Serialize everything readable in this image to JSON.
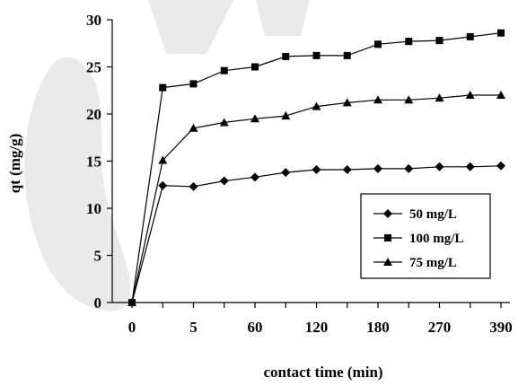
{
  "chart_data": {
    "type": "line",
    "title": "",
    "xlabel": "contact time (min)",
    "ylabel": "qt (mg/g)",
    "x_categories": [
      "0",
      "5",
      "60",
      "120",
      "180",
      "270",
      "390"
    ],
    "ylim": [
      0,
      30
    ],
    "yticks": [
      0,
      5,
      10,
      15,
      20,
      25,
      30
    ],
    "legend_position": "right-inside",
    "grid": false,
    "series": [
      {
        "name": "50 mg/L",
        "marker": "diamond",
        "points": [
          [
            0,
            0
          ],
          [
            1,
            12.4
          ],
          [
            2,
            12.3
          ],
          [
            3,
            12.9
          ],
          [
            4,
            13.3
          ],
          [
            5,
            13.8
          ],
          [
            6,
            14.1
          ],
          [
            7,
            14.1
          ],
          [
            8,
            14.2
          ],
          [
            9,
            14.2
          ],
          [
            10,
            14.4
          ],
          [
            11,
            14.4
          ],
          [
            12,
            14.5
          ]
        ]
      },
      {
        "name": "100 mg/L",
        "marker": "square",
        "points": [
          [
            0,
            0
          ],
          [
            1,
            22.8
          ],
          [
            2,
            23.2
          ],
          [
            3,
            24.6
          ],
          [
            4,
            25.0
          ],
          [
            5,
            26.1
          ],
          [
            6,
            26.2
          ],
          [
            7,
            26.2
          ],
          [
            8,
            27.4
          ],
          [
            9,
            27.7
          ],
          [
            10,
            27.8
          ],
          [
            11,
            28.2
          ],
          [
            12,
            28.6
          ]
        ]
      },
      {
        "name": "75 mg/L",
        "marker": "triangle",
        "points": [
          [
            0,
            0
          ],
          [
            1,
            15.1
          ],
          [
            2,
            18.5
          ],
          [
            3,
            19.1
          ],
          [
            4,
            19.5
          ],
          [
            5,
            19.8
          ],
          [
            6,
            20.8
          ],
          [
            7,
            21.2
          ],
          [
            8,
            21.5
          ],
          [
            9,
            21.5
          ],
          [
            10,
            21.7
          ],
          [
            11,
            22.0
          ],
          [
            12,
            22.0
          ]
        ]
      }
    ]
  }
}
